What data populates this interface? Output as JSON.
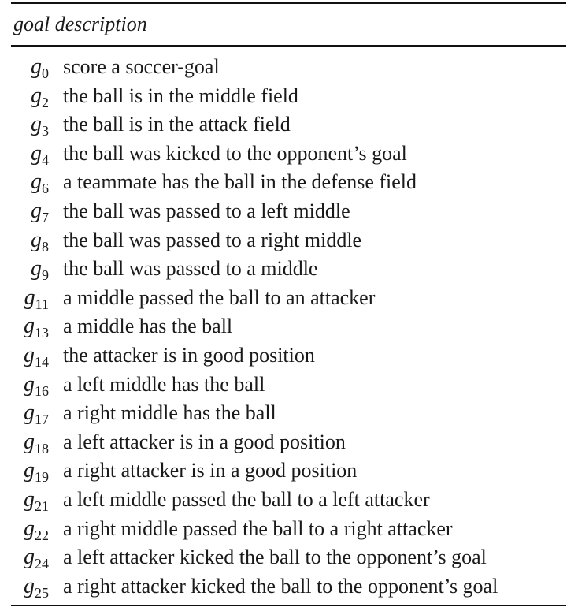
{
  "table": {
    "header": "goal description",
    "rows": [
      {
        "g": "g",
        "sub": "0",
        "description": "score a soccer-goal"
      },
      {
        "g": "g",
        "sub": "2",
        "description": "the ball is in the middle field"
      },
      {
        "g": "g",
        "sub": "3",
        "description": "the ball is in the attack field"
      },
      {
        "g": "g",
        "sub": "4",
        "description": "the ball was kicked to the opponent’s goal"
      },
      {
        "g": "g",
        "sub": "6",
        "description": "a teammate has the ball in the defense field"
      },
      {
        "g": "g",
        "sub": "7",
        "description": "the ball was passed to a left middle"
      },
      {
        "g": "g",
        "sub": "8",
        "description": "the ball was passed to a right middle"
      },
      {
        "g": "g",
        "sub": "9",
        "description": "the ball was passed to a middle"
      },
      {
        "g": "g",
        "sub": "11",
        "description": "a middle passed the ball to an attacker"
      },
      {
        "g": "g",
        "sub": "13",
        "description": "a middle has the ball"
      },
      {
        "g": "g",
        "sub": "14",
        "description": "the attacker is in good position"
      },
      {
        "g": "g",
        "sub": "16",
        "description": "a left middle has the ball"
      },
      {
        "g": "g",
        "sub": "17",
        "description": "a right middle has the ball"
      },
      {
        "g": "g",
        "sub": "18",
        "description": "a left attacker is in a good position"
      },
      {
        "g": "g",
        "sub": "19",
        "description": "a right attacker is in a good position"
      },
      {
        "g": "g",
        "sub": "21",
        "description": "a left middle passed the ball to a left attacker"
      },
      {
        "g": "g",
        "sub": "22",
        "description": "a right middle passed the ball to a right attacker"
      },
      {
        "g": "g",
        "sub": "24",
        "description": "a left attacker kicked the ball to the opponent’s goal"
      },
      {
        "g": "g",
        "sub": "25",
        "description": "a right attacker kicked the ball to the opponent’s goal"
      }
    ]
  }
}
